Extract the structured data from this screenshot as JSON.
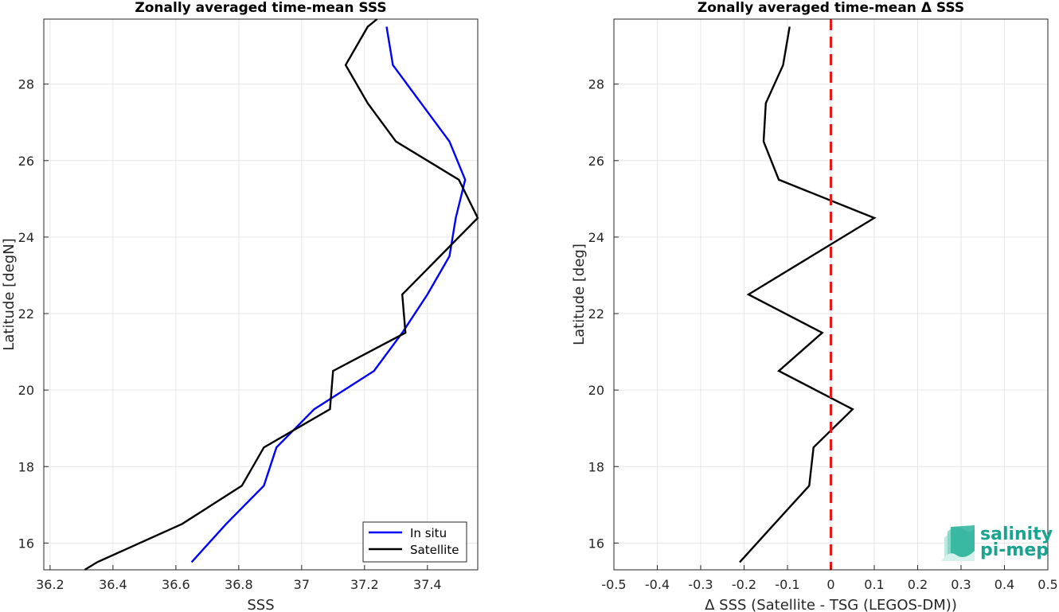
{
  "logo": {
    "line1": "salinity",
    "line2": "pi-mep",
    "color": "#1aa38f"
  },
  "chart_data": [
    {
      "type": "line",
      "title": "Zonally averaged time-mean SSS",
      "xlabel": "SSS",
      "ylabel": "Latitude [degN]",
      "xlim": [
        36.18,
        37.56
      ],
      "ylim": [
        15.3,
        29.7
      ],
      "xticks": [
        36.2,
        36.4,
        36.6,
        36.8,
        37,
        37.2,
        37.4
      ],
      "yticks": [
        16,
        18,
        20,
        22,
        24,
        26,
        28
      ],
      "grid": true,
      "legend_position": "bottom-right",
      "series": [
        {
          "name": "In situ",
          "color": "#0000ff",
          "points": [
            [
              36.65,
              15.5
            ],
            [
              36.76,
              16.5
            ],
            [
              36.88,
              17.5
            ],
            [
              36.92,
              18.5
            ],
            [
              36.98,
              19.0
            ],
            [
              37.04,
              19.5
            ],
            [
              37.23,
              20.5
            ],
            [
              37.32,
              21.5
            ],
            [
              37.4,
              22.5
            ],
            [
              37.47,
              23.5
            ],
            [
              37.49,
              24.5
            ],
            [
              37.52,
              25.5
            ],
            [
              37.47,
              26.5
            ],
            [
              37.38,
              27.5
            ],
            [
              37.29,
              28.5
            ],
            [
              37.27,
              29.5
            ]
          ]
        },
        {
          "name": "Satellite",
          "color": "#000000",
          "points": [
            [
              36.31,
              15.2
            ],
            [
              36.35,
              15.5
            ],
            [
              36.62,
              16.5
            ],
            [
              36.81,
              17.5
            ],
            [
              36.88,
              18.5
            ],
            [
              37.09,
              19.5
            ],
            [
              37.1,
              20.5
            ],
            [
              37.33,
              21.5
            ],
            [
              37.32,
              22.5
            ],
            [
              37.56,
              24.5
            ],
            [
              37.5,
              25.5
            ],
            [
              37.3,
              26.5
            ],
            [
              37.21,
              27.5
            ],
            [
              37.14,
              28.5
            ],
            [
              37.21,
              29.5
            ],
            [
              37.24,
              29.8
            ]
          ]
        }
      ]
    },
    {
      "type": "line",
      "title": "Zonally averaged time-mean Δ SSS",
      "xlabel": "Δ SSS (Satellite - TSG (LEGOS-DM))",
      "ylabel": "Latitude [deg]",
      "xlim": [
        -0.5,
        0.5
      ],
      "ylim": [
        15.3,
        29.7
      ],
      "xticks": [
        -0.5,
        -0.4,
        -0.3,
        -0.2,
        -0.1,
        0,
        0.1,
        0.2,
        0.3,
        0.4,
        0.5
      ],
      "yticks": [
        16,
        18,
        20,
        22,
        24,
        26,
        28
      ],
      "grid": true,
      "reference_line": {
        "x": 0,
        "color": "#e41a1c",
        "style": "dashed"
      },
      "series": [
        {
          "color": "#000000",
          "points": [
            [
              -0.21,
              15.5
            ],
            [
              -0.13,
              16.5
            ],
            [
              -0.05,
              17.5
            ],
            [
              -0.04,
              18.5
            ],
            [
              0.05,
              19.5
            ],
            [
              -0.12,
              20.5
            ],
            [
              -0.02,
              21.5
            ],
            [
              -0.19,
              22.5
            ],
            [
              0.1,
              24.5
            ],
            [
              -0.12,
              25.5
            ],
            [
              -0.155,
              26.5
            ],
            [
              -0.15,
              27.5
            ],
            [
              -0.11,
              28.5
            ],
            [
              -0.095,
              29.5
            ]
          ]
        }
      ]
    }
  ]
}
